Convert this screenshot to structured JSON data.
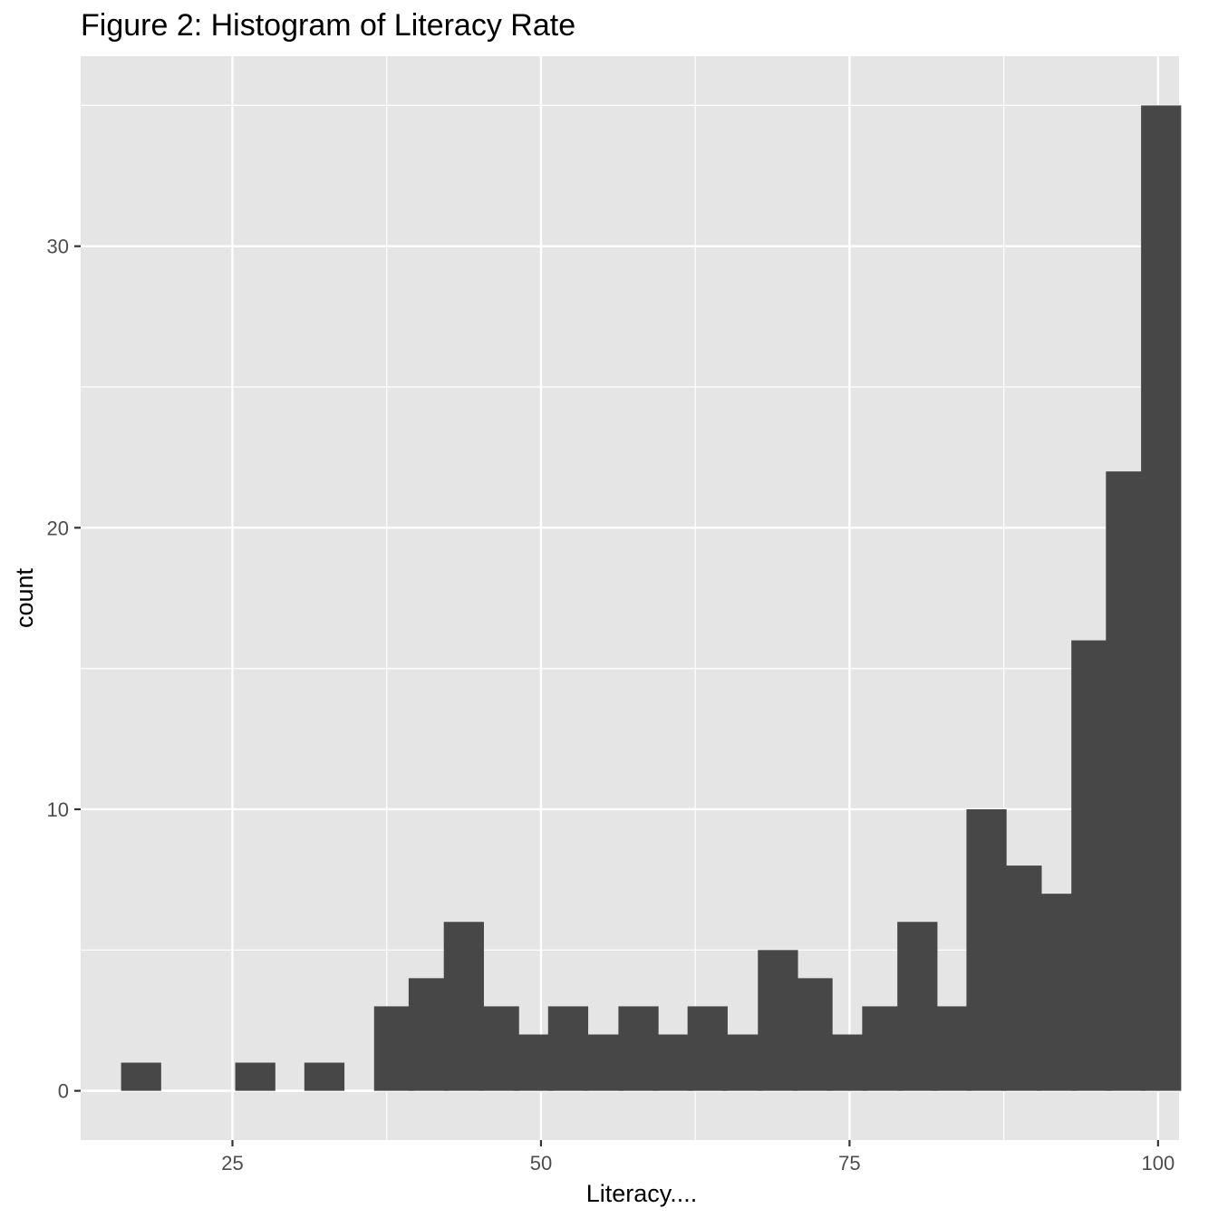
{
  "chart_data": {
    "type": "bar",
    "title": "Figure 2: Histogram of Literacy Rate",
    "xlabel": "Literacy....",
    "ylabel": "count",
    "bin_width": 3.25,
    "bins": [
      {
        "x": 17.6,
        "count": 1
      },
      {
        "x": 20.85,
        "count": 0
      },
      {
        "x": 24.1,
        "count": 0
      },
      {
        "x": 26.85,
        "count": 1
      },
      {
        "x": 29.6,
        "count": 0
      },
      {
        "x": 32.45,
        "count": 1
      },
      {
        "x": 35.3,
        "count": 0
      },
      {
        "x": 38.1,
        "count": 3
      },
      {
        "x": 40.9,
        "count": 4
      },
      {
        "x": 43.75,
        "count": 6
      },
      {
        "x": 46.6,
        "count": 3
      },
      {
        "x": 49.4,
        "count": 2
      },
      {
        "x": 52.2,
        "count": 3
      },
      {
        "x": 55.05,
        "count": 2
      },
      {
        "x": 57.9,
        "count": 3
      },
      {
        "x": 60.7,
        "count": 2
      },
      {
        "x": 63.5,
        "count": 3
      },
      {
        "x": 66.35,
        "count": 2
      },
      {
        "x": 69.2,
        "count": 5
      },
      {
        "x": 72.0,
        "count": 4
      },
      {
        "x": 74.8,
        "count": 2
      },
      {
        "x": 77.65,
        "count": 3
      },
      {
        "x": 80.5,
        "count": 6
      },
      {
        "x": 83.3,
        "count": 3
      },
      {
        "x": 86.1,
        "count": 10
      },
      {
        "x": 88.95,
        "count": 8
      },
      {
        "x": 91.8,
        "count": 7
      },
      {
        "x": 94.6,
        "count": 16
      },
      {
        "x": 97.4,
        "count": 22
      },
      {
        "x": 100.25,
        "count": 35
      }
    ],
    "xlim": [
      12.7,
      101.7
    ],
    "ylim": [
      -1.75,
      36.75
    ],
    "x_ticks": [
      25,
      50,
      75,
      100
    ],
    "x_tick_labels": [
      "25",
      "50",
      "75",
      "100"
    ],
    "y_ticks": [
      0,
      10,
      20,
      30
    ],
    "y_tick_labels": [
      "0",
      "10",
      "20",
      "30"
    ],
    "grid": true,
    "colors": {
      "panel_background": "#e5e5e5",
      "grid_line": "#ffffff",
      "bar_fill": "#474747",
      "tick_label": "#4d4d4d",
      "tick_mark": "#333333"
    }
  }
}
